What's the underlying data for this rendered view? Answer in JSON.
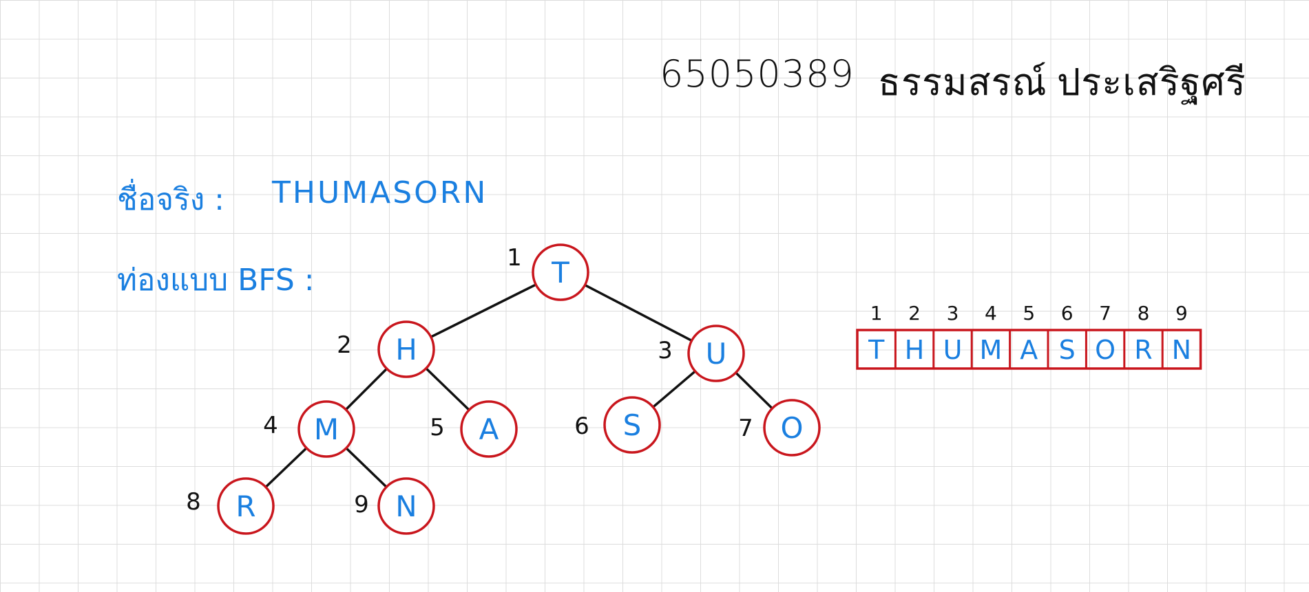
{
  "header": {
    "student_id": "65050389",
    "first_name": "ธรรมสรณ์",
    "last_name": "ประเสริฐศรี"
  },
  "name_row": {
    "label": "ชื่อจริง :",
    "value": "THUMASORN"
  },
  "bfs_row": {
    "label": "ท่องแบบ BFS :"
  },
  "colors": {
    "letter": "#1a7fe0",
    "outline": "#c9161d",
    "ink": "#111111"
  },
  "tree": {
    "nodes": [
      {
        "id": 1,
        "label": "T"
      },
      {
        "id": 2,
        "label": "H"
      },
      {
        "id": 3,
        "label": "U"
      },
      {
        "id": 4,
        "label": "M"
      },
      {
        "id": 5,
        "label": "A"
      },
      {
        "id": 6,
        "label": "S"
      },
      {
        "id": 7,
        "label": "O"
      },
      {
        "id": 8,
        "label": "R"
      },
      {
        "id": 9,
        "label": "N"
      }
    ],
    "edges": [
      [
        1,
        2
      ],
      [
        1,
        3
      ],
      [
        2,
        4
      ],
      [
        2,
        5
      ],
      [
        3,
        6
      ],
      [
        3,
        7
      ],
      [
        4,
        8
      ],
      [
        4,
        9
      ]
    ]
  },
  "array": {
    "cells": [
      {
        "index": "1",
        "label": "T"
      },
      {
        "index": "2",
        "label": "H"
      },
      {
        "index": "3",
        "label": "U"
      },
      {
        "index": "4",
        "label": "M"
      },
      {
        "index": "5",
        "label": "A"
      },
      {
        "index": "6",
        "label": "S"
      },
      {
        "index": "7",
        "label": "O"
      },
      {
        "index": "8",
        "label": "R"
      },
      {
        "index": "9",
        "label": "N"
      }
    ]
  }
}
